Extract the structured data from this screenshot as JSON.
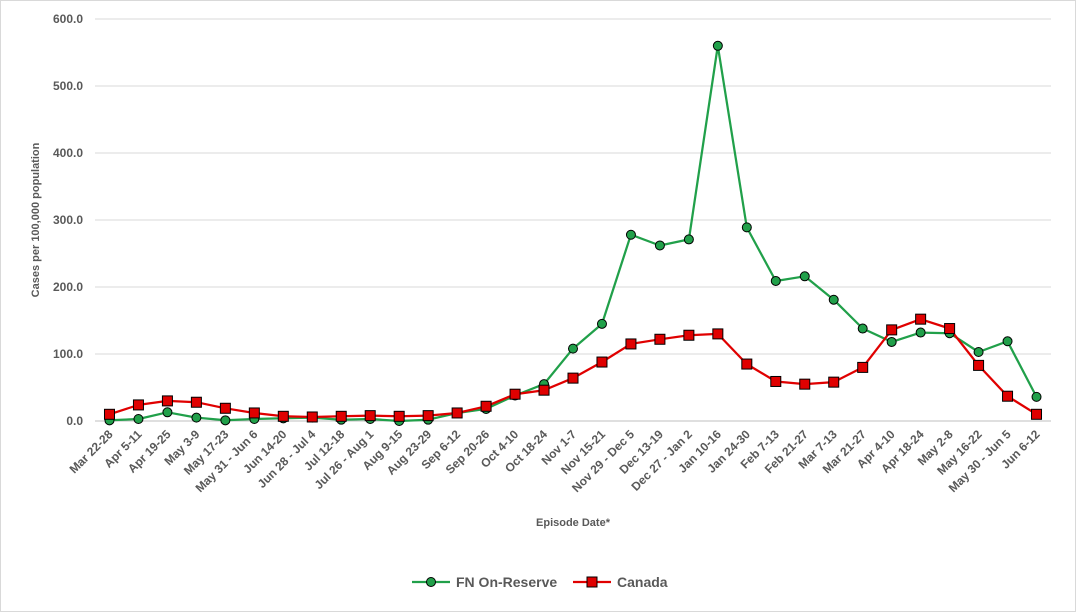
{
  "chart_data": {
    "type": "line",
    "title": "",
    "xlabel": "Episode Date*",
    "ylabel": "Cases per 100,000 population",
    "ylim": [
      0,
      600
    ],
    "yticks": [
      "0.0",
      "100.0",
      "200.0",
      "300.0",
      "400.0",
      "500.0",
      "600.0"
    ],
    "grid": "horizontal",
    "legend_position": "bottom",
    "categories": [
      "Mar 22-28",
      "Apr 5-11",
      "Apr 19-25",
      "May 3-9",
      "May 17-23",
      "May 31 - Jun 6",
      "Jun 14-20",
      "Jun 28 - Jul 4",
      "Jul 12-18",
      "Jul 26 - Aug 1",
      "Aug 9-15",
      "Aug 23-29",
      "Sep 6-12",
      "Sep 20-26",
      "Oct 4-10",
      "Oct 18-24",
      "Nov 1-7",
      "Nov 15-21",
      "Nov 29 - Dec 5",
      "Dec 13-19",
      "Dec 27 - Jan 2",
      "Jan 10-16",
      "Jan 24-30",
      "Feb 7-13",
      "Feb 21-27",
      "Mar 7-13",
      "Mar 21-27",
      "Apr 4-10",
      "Apr 18-24",
      "May 2-8",
      "May 16-22",
      "May 30 - Jun 5",
      "Jun 6-12"
    ],
    "series": [
      {
        "name": "FN On-Reserve",
        "color": "#21a04a",
        "marker": "circle",
        "values": [
          1,
          3,
          13,
          5,
          1,
          3,
          4,
          5,
          2,
          3,
          0,
          2,
          12,
          18,
          38,
          55,
          108,
          145,
          278,
          262,
          271,
          560,
          289,
          209,
          216,
          181,
          138,
          118,
          132,
          131,
          103,
          119,
          36
        ]
      },
      {
        "name": "Canada",
        "color": "#e00000",
        "marker": "square",
        "values": [
          10,
          24,
          30,
          28,
          19,
          12,
          7,
          6,
          7,
          8,
          7,
          8,
          12,
          22,
          40,
          46,
          64,
          88,
          115,
          122,
          128,
          130,
          85,
          59,
          55,
          58,
          80,
          136,
          152,
          138,
          83,
          37,
          10
        ]
      }
    ]
  }
}
